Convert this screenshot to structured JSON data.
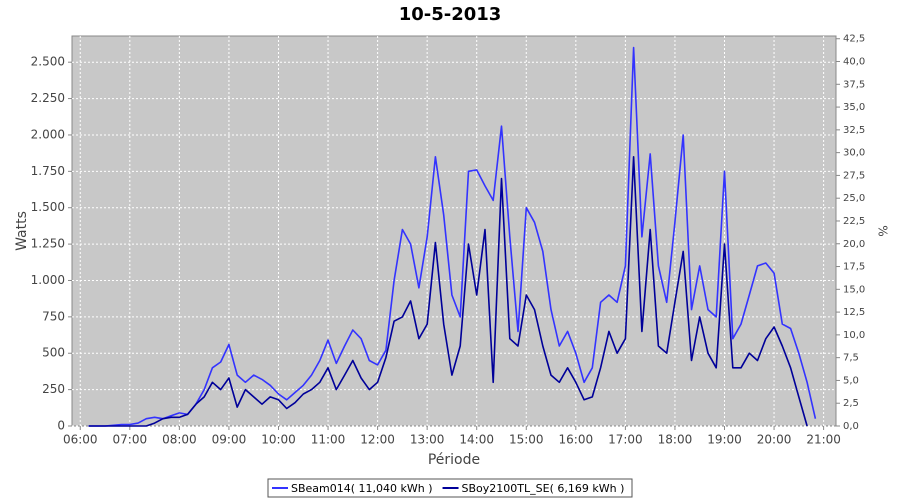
{
  "chart_data": {
    "type": "line",
    "title": "10-5-2013",
    "x_label": "Période",
    "y_label": "Watts",
    "y2_label": "%",
    "x": [
      "06:10",
      "06:20",
      "06:30",
      "06:40",
      "06:50",
      "07:00",
      "07:10",
      "07:20",
      "07:30",
      "07:40",
      "07:50",
      "08:00",
      "08:10",
      "08:20",
      "08:30",
      "08:40",
      "08:50",
      "09:00",
      "09:10",
      "09:20",
      "09:30",
      "09:40",
      "09:50",
      "10:00",
      "10:10",
      "10:20",
      "10:30",
      "10:40",
      "10:50",
      "11:00",
      "11:10",
      "11:20",
      "11:30",
      "11:40",
      "11:50",
      "12:00",
      "12:10",
      "12:20",
      "12:30",
      "12:40",
      "12:50",
      "13:00",
      "13:10",
      "13:20",
      "13:30",
      "13:40",
      "13:50",
      "14:00",
      "14:10",
      "14:20",
      "14:30",
      "14:40",
      "14:50",
      "15:00",
      "15:10",
      "15:20",
      "15:30",
      "15:40",
      "15:50",
      "16:00",
      "16:10",
      "16:20",
      "16:30",
      "16:40",
      "16:50",
      "17:00",
      "17:10",
      "17:20",
      "17:30",
      "17:40",
      "17:50",
      "18:00",
      "18:10",
      "18:20",
      "18:30",
      "18:40",
      "18:50",
      "19:00",
      "19:10",
      "19:20",
      "19:30",
      "19:40",
      "19:50",
      "20:00",
      "20:10",
      "20:20",
      "20:30",
      "20:40",
      "20:50"
    ],
    "series": [
      {
        "name": "SBeam014( 11,040 kWh )",
        "color": "#3333ff",
        "values": [
          0,
          0,
          0,
          5,
          10,
          10,
          20,
          50,
          60,
          50,
          70,
          90,
          80,
          150,
          250,
          400,
          440,
          560,
          350,
          300,
          350,
          320,
          280,
          220,
          180,
          230,
          280,
          350,
          450,
          590,
          430,
          550,
          660,
          600,
          450,
          420,
          520,
          1000,
          1350,
          1250,
          950,
          1300,
          1850,
          1450,
          900,
          750,
          1750,
          1760,
          1650,
          1550,
          2060,
          1300,
          650,
          1500,
          1400,
          1200,
          800,
          550,
          650,
          500,
          300,
          400,
          850,
          900,
          850,
          1100,
          2600,
          1300,
          1870,
          1100,
          850,
          1400,
          2000,
          800,
          1100,
          800,
          750,
          1750,
          600,
          700,
          900,
          1100,
          1120,
          1050,
          700,
          670,
          500,
          300,
          50
        ]
      },
      {
        "name": "SBoy2100TL_SE( 6,169 kWh )",
        "color": "#000099",
        "values": [
          0,
          0,
          0,
          0,
          0,
          0,
          0,
          0,
          20,
          50,
          60,
          60,
          80,
          150,
          200,
          300,
          250,
          330,
          130,
          250,
          200,
          150,
          200,
          180,
          120,
          160,
          220,
          250,
          300,
          400,
          250,
          350,
          450,
          330,
          250,
          300,
          470,
          720,
          750,
          860,
          600,
          700,
          1260,
          700,
          350,
          550,
          1250,
          900,
          1350,
          300,
          1700,
          600,
          550,
          900,
          800,
          550,
          350,
          300,
          400,
          300,
          180,
          200,
          400,
          650,
          500,
          600,
          1850,
          650,
          1350,
          550,
          500,
          850,
          1200,
          450,
          750,
          500,
          400,
          1250,
          400,
          400,
          500,
          450,
          600,
          680,
          550,
          400,
          200,
          0,
          null
        ]
      }
    ],
    "xlim": [
      "05:50",
      "21:15"
    ],
    "xticks": [
      "06:00",
      "07:00",
      "08:00",
      "09:00",
      "10:00",
      "11:00",
      "12:00",
      "13:00",
      "14:00",
      "15:00",
      "16:00",
      "17:00",
      "18:00",
      "19:00",
      "20:00",
      "21:00"
    ],
    "ylim": [
      0,
      2680
    ],
    "yticks": [
      0,
      250,
      500,
      750,
      {
        "value": 1000,
        "label": "1.000"
      },
      {
        "value": 1250,
        "label": "1.250"
      },
      {
        "value": 1500,
        "label": "1.500"
      },
      {
        "value": 1750,
        "label": "1.750"
      },
      {
        "value": 2000,
        "label": "2.000"
      },
      {
        "value": 2250,
        "label": "2.250"
      },
      {
        "value": 2500,
        "label": "2.500"
      }
    ],
    "y2lim": [
      0,
      42.8
    ],
    "y2ticks": [
      {
        "value": 0,
        "label": "0,0"
      },
      {
        "value": 2.5,
        "label": "2,5"
      },
      {
        "value": 5,
        "label": "5,0"
      },
      {
        "value": 7.5,
        "label": "7,5"
      },
      {
        "value": 10,
        "label": "10,0"
      },
      {
        "value": 12.5,
        "label": "12,5"
      },
      {
        "value": 15,
        "label": "15,0"
      },
      {
        "value": 17.5,
        "label": "17,5"
      },
      {
        "value": 20,
        "label": "20,0"
      },
      {
        "value": 22.5,
        "label": "22,5"
      },
      {
        "value": 25,
        "label": "25,0"
      },
      {
        "value": 27.5,
        "label": "27,5"
      },
      {
        "value": 30,
        "label": "30,0"
      },
      {
        "value": 32.5,
        "label": "32,5"
      },
      {
        "value": 35,
        "label": "35,0"
      },
      {
        "value": 37.5,
        "label": "37,5"
      },
      {
        "value": 40,
        "label": "40,0"
      },
      {
        "value": 42.5,
        "label": "42,5"
      }
    ],
    "grid": true,
    "legend": "bottom"
  }
}
